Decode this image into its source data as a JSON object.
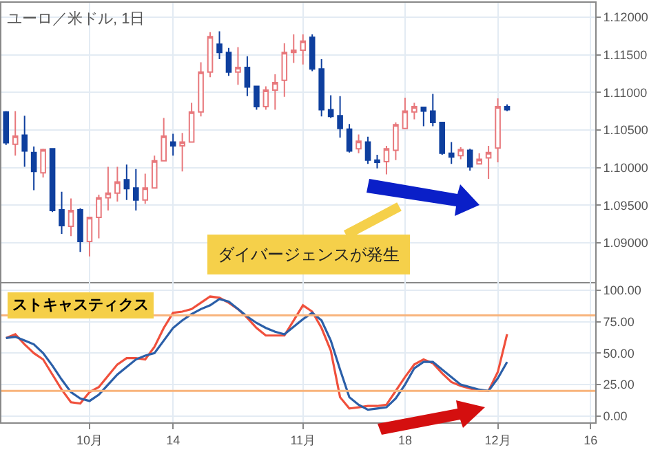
{
  "chart_data": [
    {
      "type": "candlestick",
      "title": "ユーロ／米ドル, 1日",
      "annotations": [
        "ダイバージェンスが発生"
      ],
      "categories": [
        null,
        null,
        null,
        null,
        null,
        null,
        null,
        null,
        null,
        null,
        null,
        null,
        null,
        null,
        null,
        null,
        null,
        null,
        null,
        null,
        null,
        null,
        null,
        null,
        null,
        null,
        null,
        null,
        null,
        null,
        null,
        null,
        null,
        null,
        null,
        null,
        null,
        null,
        null,
        null,
        null,
        null,
        null,
        null,
        null,
        null,
        null,
        null,
        null,
        null,
        null,
        null,
        null,
        null,
        null,
        null,
        null,
        null,
        null,
        null,
        null,
        null,
        null,
        null
      ],
      "ohlc": [
        [
          1.1074,
          1.1075,
          1.103,
          1.1033
        ],
        [
          1.1031,
          1.1075,
          1.1016,
          1.1042
        ],
        [
          1.1043,
          1.1069,
          1.1001,
          1.1022
        ],
        [
          1.102,
          1.1028,
          1.097,
          1.0995
        ],
        [
          1.0993,
          1.1025,
          1.0987,
          1.1024
        ],
        [
          1.1025,
          1.1025,
          1.0941,
          1.0943
        ],
        [
          1.0944,
          1.0968,
          1.0912,
          1.0923
        ],
        [
          1.0922,
          1.0959,
          1.0909,
          1.0943
        ],
        [
          1.0944,
          1.0946,
          1.0888,
          1.0902
        ],
        [
          1.0902,
          1.0934,
          1.0882,
          1.0934
        ],
        [
          1.0934,
          1.0964,
          1.0906,
          1.096
        ],
        [
          1.096,
          1.1001,
          1.0943,
          1.0966
        ],
        [
          1.0966,
          1.1001,
          1.0955,
          1.0981
        ],
        [
          1.0984,
          1.1004,
          1.0957,
          1.0972
        ],
        [
          1.0973,
          1.0998,
          1.0943,
          1.0957
        ],
        [
          1.0957,
          1.0992,
          1.0952,
          1.0973
        ],
        [
          1.0973,
          1.1016,
          1.0973,
          1.1009
        ],
        [
          1.1009,
          1.1066,
          1.1009,
          1.1042
        ],
        [
          1.1034,
          1.1045,
          1.1016,
          1.1029
        ],
        [
          1.1029,
          1.1046,
          1.0995,
          1.1034
        ],
        [
          1.1034,
          1.1086,
          1.1034,
          1.1074
        ],
        [
          1.1074,
          1.114,
          1.1068,
          1.1127
        ],
        [
          1.1127,
          1.118,
          1.112,
          1.1174
        ],
        [
          1.1164,
          1.1181,
          1.1144,
          1.1153
        ],
        [
          1.1153,
          1.1159,
          1.1122,
          1.1127
        ],
        [
          1.1127,
          1.116,
          1.111,
          1.1133
        ],
        [
          1.1133,
          1.1148,
          1.1095,
          1.1107
        ],
        [
          1.1108,
          1.1108,
          1.1077,
          1.1081
        ],
        [
          1.1081,
          1.1108,
          1.1077,
          1.1103
        ],
        [
          1.1103,
          1.1124,
          1.1077,
          1.1113
        ],
        [
          1.1116,
          1.1165,
          1.1094,
          1.1153
        ],
        [
          1.1153,
          1.1177,
          1.1139,
          1.1156
        ],
        [
          1.1156,
          1.1177,
          1.1137,
          1.1168
        ],
        [
          1.1173,
          1.1177,
          1.1128,
          1.1131
        ],
        [
          1.1131,
          1.1144,
          1.1068,
          1.1077
        ],
        [
          1.1077,
          1.1096,
          1.1066,
          1.1068
        ],
        [
          1.1069,
          1.1095,
          1.104,
          1.1052
        ],
        [
          1.1051,
          1.1058,
          1.102,
          1.1022
        ],
        [
          1.1025,
          1.1044,
          1.1019,
          1.1035
        ],
        [
          1.1034,
          1.1041,
          1.1005,
          1.101
        ],
        [
          1.101,
          1.1017,
          1.0999,
          1.1007
        ],
        [
          1.1008,
          1.1029,
          1.0991,
          1.1025
        ],
        [
          1.1023,
          1.106,
          1.101,
          1.1057
        ],
        [
          1.1052,
          1.1093,
          1.1051,
          1.1075
        ],
        [
          1.1074,
          1.1086,
          1.1064,
          1.1081
        ],
        [
          1.108,
          1.1081,
          1.1055,
          1.1075
        ],
        [
          1.1075,
          1.1098,
          1.1055,
          1.106
        ],
        [
          1.106,
          1.106,
          1.1017,
          1.1019
        ],
        [
          1.1019,
          1.1034,
          1.1005,
          1.1014
        ],
        [
          1.1016,
          1.1027,
          1.1011,
          1.1024
        ],
        [
          1.1023,
          1.1025,
          1.0996,
          1.1001
        ],
        [
          1.1005,
          1.1019,
          1.1004,
          1.1011
        ],
        [
          1.1013,
          1.1029,
          1.0985,
          1.102
        ],
        [
          1.1026,
          1.1092,
          1.1007,
          1.1081
        ],
        [
          1.1081,
          1.1084,
          1.1075,
          1.1077
        ],
        null,
        null,
        null,
        null,
        null,
        null,
        null,
        null,
        null
      ],
      "colors": [
        "#0e3f9e",
        "#e8787c",
        "#0e3f9e",
        "#0e3f9e",
        "#e8787c",
        "#0e3f9e",
        "#0e3f9e",
        "#e8787c",
        "#0e3f9e",
        "#e8787c",
        "#e8787c",
        "#e8787c",
        "#e8787c",
        "#0e3f9e",
        "#0e3f9e",
        "#e8787c",
        "#e8787c",
        "#e8787c",
        "#0e3f9e",
        "#e8787c",
        "#e8787c",
        "#e8787c",
        "#e8787c",
        "#0e3f9e",
        "#0e3f9e",
        "#e8787c",
        "#0e3f9e",
        "#0e3f9e",
        "#e8787c",
        "#e8787c",
        "#e8787c",
        "#e8787c",
        "#e8787c",
        "#0e3f9e",
        "#0e3f9e",
        "#0e3f9e",
        "#0e3f9e",
        "#0e3f9e",
        "#e8787c",
        "#0e3f9e",
        "#0e3f9e",
        "#e8787c",
        "#e8787c",
        "#e8787c",
        "#e8787c",
        "#0e3f9e",
        "#0e3f9e",
        "#0e3f9e",
        "#0e3f9e",
        "#e8787c",
        "#0e3f9e",
        "#e8787c",
        "#e8787c",
        "#e8787c",
        "#0e3f9e",
        null,
        null,
        null,
        null,
        null,
        null,
        null,
        null,
        null
      ],
      "ylim": [
        1.0848,
        1.1219
      ],
      "yticks": [
        {
          "value": 1.09,
          "label": "1.09000"
        },
        {
          "value": 1.095,
          "label": "1.09500"
        },
        {
          "value": 1.1,
          "label": "1.10000"
        },
        {
          "value": 1.105,
          "label": "1.10500"
        },
        {
          "value": 1.11,
          "label": "1.11000"
        },
        {
          "value": 1.115,
          "label": "1.11500"
        },
        {
          "value": 1.12,
          "label": "1.12000"
        }
      ],
      "tick_labels": "y",
      "grid": true
    },
    {
      "type": "line",
      "title": "ストキャスティクス",
      "categories": [
        null,
        null,
        null,
        null,
        null,
        null,
        null,
        null,
        null,
        "10月",
        null,
        null,
        null,
        null,
        null,
        null,
        null,
        null,
        "14",
        null,
        null,
        null,
        null,
        null,
        null,
        null,
        null,
        null,
        null,
        null,
        null,
        null,
        "11月",
        null,
        null,
        null,
        null,
        null,
        null,
        null,
        null,
        null,
        null,
        "18",
        null,
        null,
        null,
        null,
        null,
        null,
        null,
        null,
        null,
        "12月",
        null,
        null,
        null,
        null,
        null,
        null,
        null,
        null,
        null,
        "16"
      ],
      "series": [
        {
          "color": "#f0503c",
          "values": [
            62,
            65,
            57,
            50,
            45,
            33,
            21,
            11,
            10,
            19,
            23,
            32,
            41,
            46,
            46,
            45,
            55,
            70,
            82,
            83,
            85,
            90,
            95,
            94,
            90,
            85,
            78,
            70,
            64,
            64,
            64,
            76,
            88,
            83,
            70,
            52,
            15,
            6,
            7,
            8,
            8,
            9,
            20,
            31,
            41,
            45,
            42,
            34,
            27,
            24,
            22,
            20,
            20,
            35,
            65,
            null,
            null,
            null,
            null,
            null,
            null,
            null,
            null,
            null
          ]
        },
        {
          "color": "#2b5fa8",
          "values": [
            62,
            63,
            60,
            57,
            50,
            40,
            29,
            19,
            14,
            12,
            17,
            25,
            33,
            39,
            45,
            48,
            50,
            60,
            70,
            76,
            81,
            85,
            88,
            93,
            91,
            85,
            79,
            74,
            70,
            67,
            65,
            71,
            77,
            82,
            76,
            60,
            37,
            15,
            9,
            5,
            6,
            7,
            14,
            25,
            38,
            43,
            43,
            37,
            31,
            25,
            23,
            21,
            20,
            30,
            43,
            null,
            null,
            null,
            null,
            null,
            null,
            null,
            null,
            null
          ]
        }
      ],
      "ref_lines": [
        {
          "axis": "y",
          "value": 80,
          "color": "#f8b47c"
        },
        {
          "axis": "y",
          "value": 20,
          "color": "#f8b47c"
        }
      ],
      "ylim": [
        -5,
        106.5
      ],
      "yticks": [
        {
          "value": 0,
          "label": "0.00"
        },
        {
          "value": 25,
          "label": "25.00"
        },
        {
          "value": 50,
          "label": "50.00"
        },
        {
          "value": 75,
          "label": "75.00"
        },
        {
          "value": 100,
          "label": "100.00"
        }
      ],
      "grid": true
    }
  ]
}
